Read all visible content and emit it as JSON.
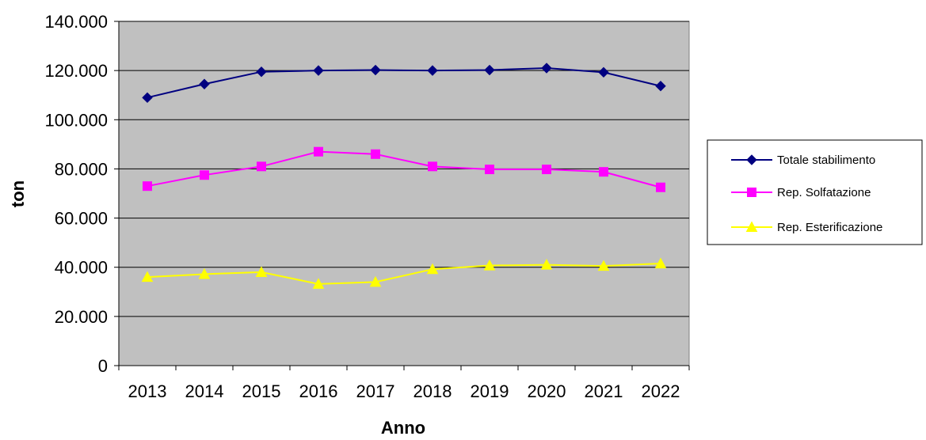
{
  "chart_data": {
    "type": "line",
    "title": "",
    "xlabel": "Anno",
    "ylabel": "ton",
    "categories": [
      "2013",
      "2014",
      "2015",
      "2016",
      "2017",
      "2018",
      "2019",
      "2020",
      "2021",
      "2022"
    ],
    "ylim": [
      0,
      140000
    ],
    "y_ticks": [
      0,
      20000,
      40000,
      60000,
      80000,
      100000,
      120000,
      140000
    ],
    "y_tick_labels": [
      "0",
      "20.000",
      "40.000",
      "60.000",
      "80.000",
      "100.000",
      "120.000",
      "140.000"
    ],
    "grid": "horizontal",
    "plot_background": "#c0c0c0",
    "legend_position": "right",
    "series": [
      {
        "name": "Totale stabilimento",
        "color": "#000080",
        "marker": "diamond",
        "values": [
          109000,
          114500,
          119500,
          120000,
          120200,
          120000,
          120200,
          121000,
          119300,
          113700
        ]
      },
      {
        "name": "Rep. Solfatazione",
        "color": "#ff00ff",
        "marker": "square",
        "values": [
          73000,
          77500,
          81000,
          87000,
          86000,
          81000,
          79800,
          79800,
          78800,
          72500
        ]
      },
      {
        "name": "Rep. Esterificazione",
        "color": "#ffff00",
        "marker": "triangle",
        "values": [
          36000,
          37200,
          38000,
          33200,
          34000,
          39200,
          40700,
          41000,
          40500,
          41500
        ]
      }
    ]
  }
}
